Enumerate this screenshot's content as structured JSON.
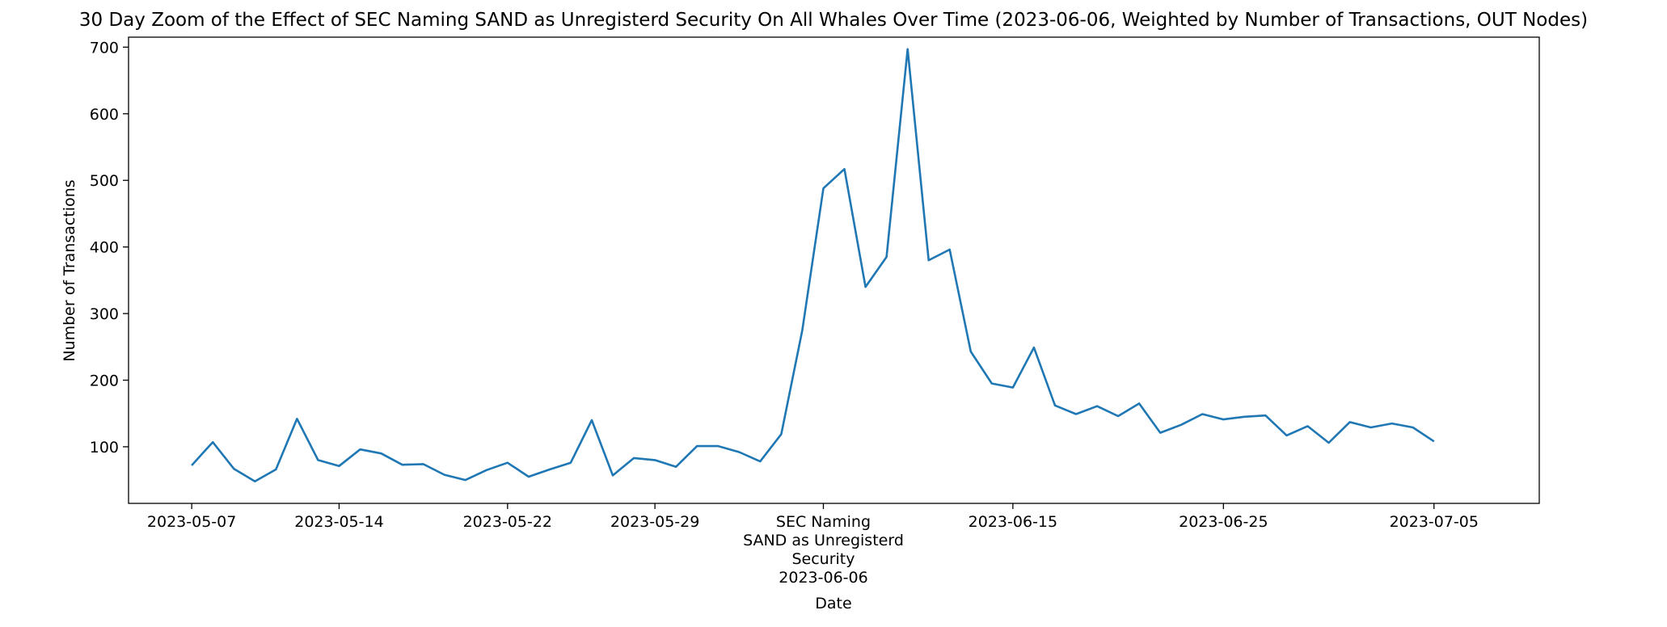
{
  "chart_data": {
    "type": "line",
    "title": "30 Day Zoom of the Effect of SEC Naming SAND as Unregisterd Security On All Whales Over Time (2023-06-06, Weighted by Number of Transactions, OUT Nodes)",
    "xlabel": "Date",
    "ylabel": "Number of Transactions",
    "xlim": [
      "2023-05-04",
      "2023-07-10"
    ],
    "ylim": [
      15,
      715
    ],
    "grid": false,
    "line_color": "#1f77b4",
    "x_ticks": [
      {
        "date": "2023-05-07",
        "label": "2023-05-07"
      },
      {
        "date": "2023-05-14",
        "label": "2023-05-14"
      },
      {
        "date": "2023-05-22",
        "label": "2023-05-22"
      },
      {
        "date": "2023-05-29",
        "label": "2023-05-29"
      },
      {
        "date": "2023-06-06",
        "label": "SEC Naming\nSAND as Unregisterd\nSecurity\n2023-06-06"
      },
      {
        "date": "2023-06-15",
        "label": "2023-06-15"
      },
      {
        "date": "2023-06-25",
        "label": "2023-06-25"
      },
      {
        "date": "2023-07-05",
        "label": "2023-07-05"
      }
    ],
    "y_ticks": [
      100,
      200,
      300,
      400,
      500,
      600,
      700
    ],
    "series": [
      {
        "x": [
          "2023-05-07",
          "2023-05-08",
          "2023-05-09",
          "2023-05-10",
          "2023-05-11",
          "2023-05-12",
          "2023-05-13",
          "2023-05-14",
          "2023-05-15",
          "2023-05-16",
          "2023-05-17",
          "2023-05-18",
          "2023-05-19",
          "2023-05-20",
          "2023-05-21",
          "2023-05-22",
          "2023-05-23",
          "2023-05-24",
          "2023-05-25",
          "2023-05-26",
          "2023-05-27",
          "2023-05-28",
          "2023-05-29",
          "2023-05-30",
          "2023-05-31",
          "2023-06-01",
          "2023-06-02",
          "2023-06-03",
          "2023-06-04",
          "2023-06-05",
          "2023-06-06",
          "2023-06-07",
          "2023-06-08",
          "2023-06-09",
          "2023-06-10",
          "2023-06-11",
          "2023-06-12",
          "2023-06-13",
          "2023-06-14",
          "2023-06-15",
          "2023-06-16",
          "2023-06-17",
          "2023-06-18",
          "2023-06-19",
          "2023-06-20",
          "2023-06-21",
          "2023-06-22",
          "2023-06-23",
          "2023-06-24",
          "2023-06-25",
          "2023-06-26",
          "2023-06-27",
          "2023-06-28",
          "2023-06-29",
          "2023-06-30",
          "2023-07-01",
          "2023-07-02",
          "2023-07-03",
          "2023-07-04",
          "2023-07-05"
        ],
        "values": [
          72,
          107,
          67,
          48,
          66,
          142,
          80,
          71,
          96,
          90,
          73,
          74,
          58,
          50,
          65,
          76,
          55,
          66,
          76,
          140,
          57,
          83,
          80,
          70,
          101,
          101,
          92,
          78,
          119,
          275,
          488,
          517,
          340,
          385,
          697,
          380,
          396,
          243,
          195,
          189,
          249,
          162,
          149,
          161,
          146,
          165,
          121,
          133,
          149,
          141,
          145,
          147,
          117,
          131,
          106,
          137,
          129,
          135,
          129,
          108
        ]
      }
    ]
  }
}
